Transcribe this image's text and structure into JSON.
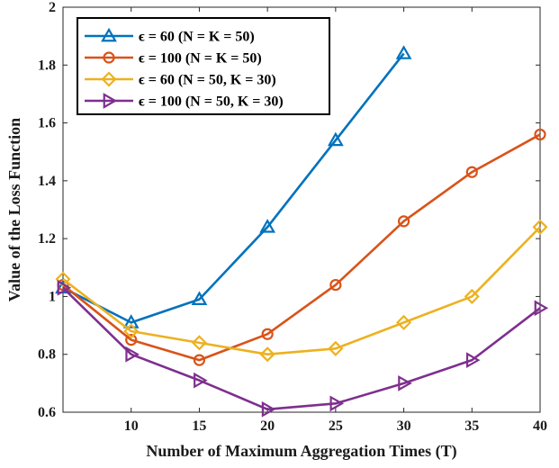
{
  "chart_data": {
    "type": "line",
    "title": "",
    "xlabel": "Number of Maximum Aggregation Times (T)",
    "ylabel": "Value of the Loss Function",
    "xlim": [
      5,
      40
    ],
    "ylim": [
      0.6,
      2
    ],
    "xticks": [
      10,
      15,
      20,
      25,
      30,
      35,
      40
    ],
    "yticks": [
      0.6,
      0.8,
      1,
      1.2,
      1.4,
      1.6,
      1.8,
      2
    ],
    "ytick_labels": [
      "0.6",
      "0.8",
      "1",
      "1.2",
      "1.4",
      "1.6",
      "1.8",
      "2"
    ],
    "grid": false,
    "legend_position": "top-left",
    "series": [
      {
        "name": "ϵ =  60  (N = K = 50)",
        "color": "#0072BD",
        "marker": "triangle-up",
        "x": [
          5,
          10,
          15,
          20,
          25,
          30
        ],
        "values": [
          1.03,
          0.91,
          0.99,
          1.24,
          1.54,
          1.84
        ]
      },
      {
        "name": "ϵ = 100  (N = K = 50)",
        "color": "#D95319",
        "marker": "circle",
        "x": [
          5,
          10,
          15,
          20,
          25,
          30,
          35,
          40
        ],
        "values": [
          1.04,
          0.85,
          0.78,
          0.87,
          1.04,
          1.26,
          1.43,
          1.56
        ]
      },
      {
        "name": "ϵ =  60  (N = 50, K = 30)",
        "color": "#EDB120",
        "marker": "diamond",
        "x": [
          5,
          10,
          15,
          20,
          25,
          30,
          35,
          40
        ],
        "values": [
          1.06,
          0.88,
          0.84,
          0.8,
          0.82,
          0.91,
          1.0,
          1.24
        ]
      },
      {
        "name": "ϵ = 100  (N = 50, K = 30)",
        "color": "#7E2F8E",
        "marker": "triangle-right",
        "x": [
          5,
          10,
          15,
          20,
          25,
          30,
          35,
          40
        ],
        "values": [
          1.03,
          0.8,
          0.71,
          0.61,
          0.63,
          0.7,
          0.78,
          0.96
        ]
      }
    ]
  }
}
